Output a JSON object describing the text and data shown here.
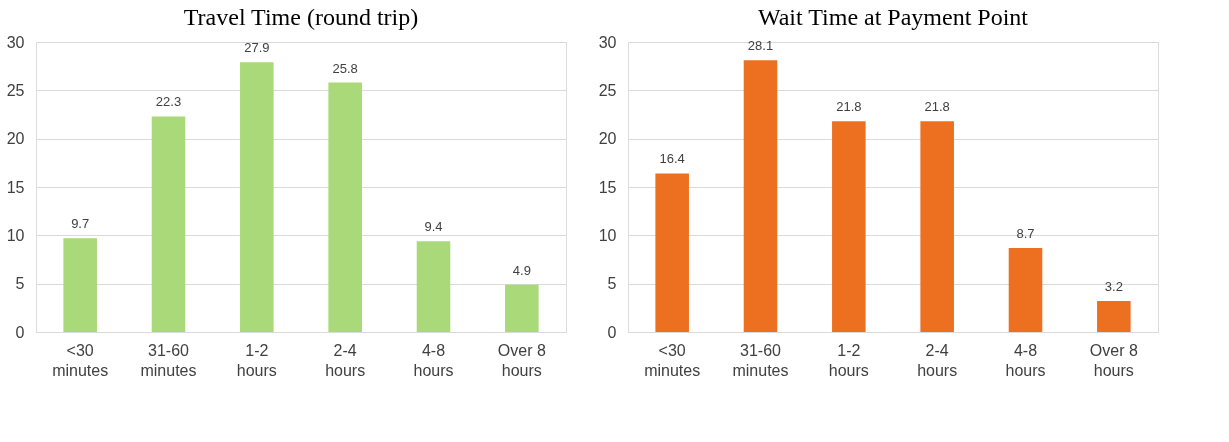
{
  "chart_data": [
    {
      "type": "bar",
      "title": "Travel Time (round trip)",
      "categories": [
        "<30 minutes",
        "31-60 minutes",
        "1-2 hours",
        "2-4 hours",
        "4-8 hours",
        "Over 8 hours"
      ],
      "values": [
        9.7,
        22.3,
        27.9,
        25.8,
        9.4,
        4.9
      ],
      "color": "#a9d978",
      "ylim": [
        0,
        30
      ],
      "yticks": [
        0,
        5,
        10,
        15,
        20,
        25,
        30
      ],
      "grid": "y",
      "data_labels": true
    },
    {
      "type": "bar",
      "title": "Wait Time at Payment Point",
      "categories": [
        "<30 minutes",
        "31-60 minutes",
        "1-2 hours",
        "2-4 hours",
        "4-8 hours",
        "Over 8 hours"
      ],
      "values": [
        16.4,
        28.1,
        21.8,
        21.8,
        8.7,
        3.2
      ],
      "color": "#ed7020",
      "ylim": [
        0,
        30
      ],
      "yticks": [
        0,
        5,
        10,
        15,
        20,
        25,
        30
      ],
      "grid": "y",
      "data_labels": true
    }
  ]
}
